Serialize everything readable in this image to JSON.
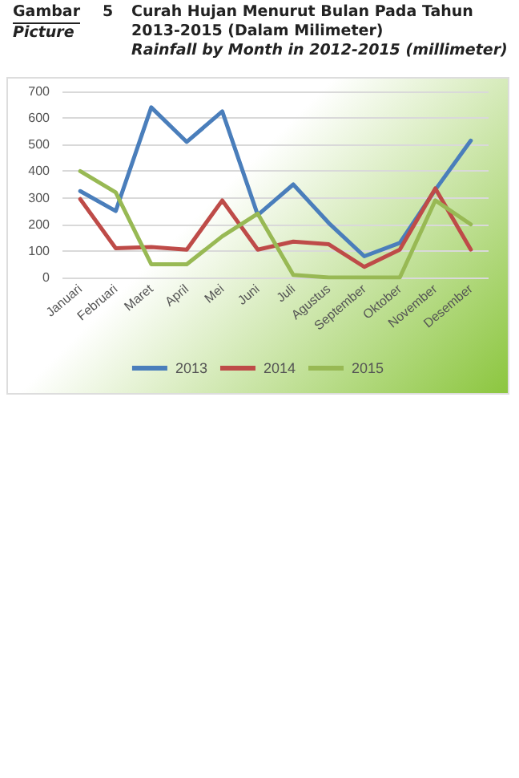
{
  "chart_data": {
    "type": "line",
    "title": "Curah Hujan Menurut Bulan Pada Tahun 2013-2015 (Dalam Milimeter)",
    "subtitle": "Rainfall by Month in 2012-2015 (millimeter)",
    "annotations": [
      "Gambar",
      "5",
      "Picture"
    ],
    "categories": [
      "Januari",
      "Februari",
      "Maret",
      "April",
      "Mei",
      "Juni",
      "Juli",
      "Agustus",
      "September",
      "Oktober",
      "November",
      "Desember"
    ],
    "series": [
      {
        "name": "2013",
        "color": "#4a7ebb",
        "values": [
          325,
          250,
          640,
          510,
          625,
          235,
          350,
          205,
          80,
          130,
          330,
          515
        ]
      },
      {
        "name": "2014",
        "color": "#be4b48",
        "values": [
          295,
          110,
          115,
          105,
          290,
          105,
          135,
          125,
          40,
          105,
          335,
          105
        ]
      },
      {
        "name": "2015",
        "color": "#98b954",
        "values": [
          400,
          320,
          50,
          50,
          155,
          240,
          10,
          0,
          0,
          0,
          290,
          200
        ]
      }
    ],
    "ylim": [
      0,
      700
    ],
    "yticks": [
      0,
      100,
      200,
      300,
      400,
      500,
      600,
      700
    ],
    "grid": "y",
    "legend": "bottom",
    "marker": "none",
    "line_style": "solid"
  }
}
